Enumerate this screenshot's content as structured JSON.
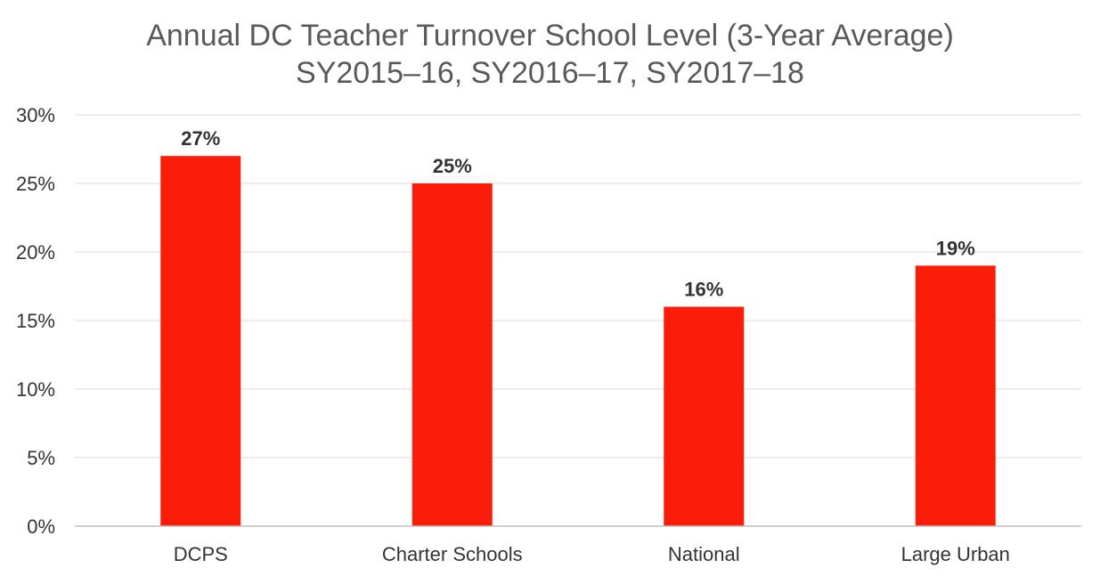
{
  "chart_data": {
    "type": "bar",
    "title": "Annual DC Teacher Turnover School Level (3-Year Average)",
    "subtitle": "SY2015–16, SY2016–17, SY2017–18",
    "categories": [
      "DCPS",
      "Charter Schools",
      "National",
      "Large Urban"
    ],
    "values": [
      27,
      25,
      16,
      19
    ],
    "data_labels": [
      "27%",
      "25%",
      "16%",
      "19%"
    ],
    "ylim": [
      0,
      30
    ],
    "y_ticks": [
      0,
      5,
      10,
      15,
      20,
      25,
      30
    ],
    "y_tick_labels": [
      "0%",
      "5%",
      "10%",
      "15%",
      "20%",
      "25%",
      "30%"
    ],
    "xlabel": "",
    "ylabel": "",
    "grid": true,
    "legend": "none",
    "bar_color": "#fa1e0a"
  }
}
